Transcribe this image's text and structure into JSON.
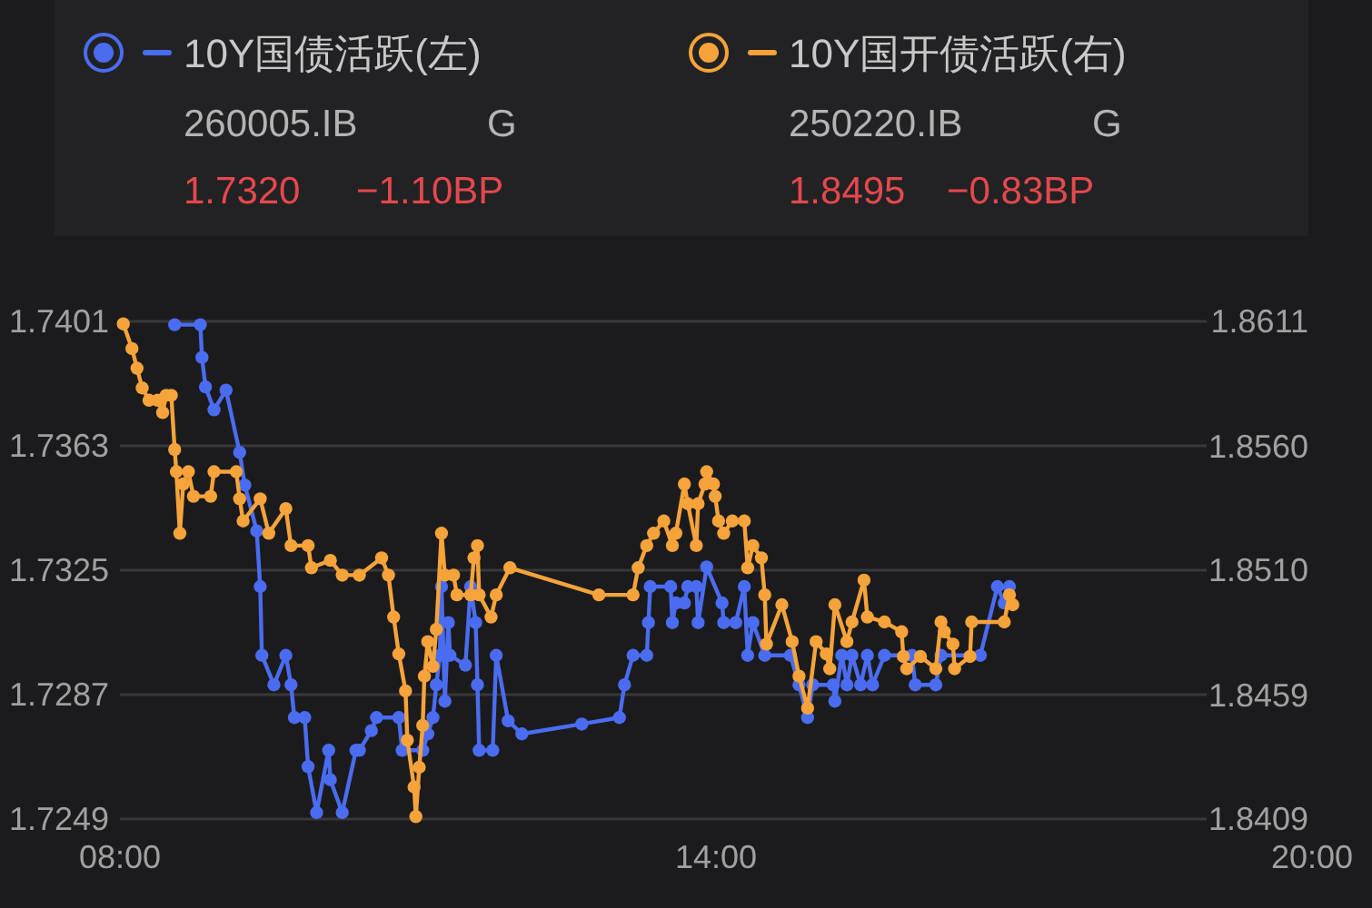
{
  "chart_data": {
    "type": "line",
    "marker": "circle",
    "grid": "y",
    "legend": "top",
    "annotations": [
      "260005.IB",
      "G",
      "1.7320",
      "−1.10BP",
      "250220.IB",
      "G",
      "1.8495",
      "−0.83BP"
    ],
    "xlim": [
      8,
      20
    ],
    "xticks": [
      {
        "value": 8,
        "label": "08:00"
      },
      {
        "value": 14,
        "label": "14:00"
      },
      {
        "value": 20,
        "label": "20:00"
      }
    ],
    "ylim": [
      1.7249,
      1.7401
    ],
    "yticks": [
      1.7249,
      1.7287,
      1.7325,
      1.7363,
      1.7401
    ],
    "y2lim": [
      1.8409,
      1.8611
    ],
    "y2ticks": [
      1.8409,
      1.8459,
      {
        "value": 1.851,
        "label": "1.8510"
      },
      {
        "value": 1.856,
        "label": "1.8560"
      },
      1.8611
    ],
    "series": [
      {
        "name": "10Y国债活跃(左)",
        "color": "#4a6cf0",
        "x": [
          8.551,
          8.809,
          8.826,
          8.861,
          8.947,
          9.068,
          9.205,
          9.257,
          9.377,
          9.412,
          9.429,
          9.55,
          9.67,
          9.722,
          9.756,
          9.86,
          9.894,
          9.98,
          10.101,
          10.118,
          10.238,
          10.376,
          10.41,
          10.531,
          10.583,
          10.807,
          10.841,
          11.048,
          11.099,
          11.151,
          11.185,
          11.22,
          11.237,
          11.271,
          11.306,
          11.323,
          11.478,
          11.53,
          11.581,
          11.599,
          11.616,
          11.753,
          11.788,
          11.908,
          12.046,
          12.649,
          13.028,
          13.079,
          13.165,
          13.303,
          13.32,
          13.338,
          13.544,
          13.561,
          13.596,
          13.682,
          13.716,
          13.802,
          13.82,
          13.906,
          14.061,
          14.078,
          14.199,
          14.285,
          14.319,
          14.371,
          14.491,
          14.749,
          14.836,
          14.922,
          14.973,
          15.18,
          15.197,
          15.266,
          15.318,
          15.369,
          15.456,
          15.524,
          15.576,
          15.696,
          15.972,
          16.006,
          16.213,
          16.265,
          16.661,
          16.833,
          16.902,
          16.954
        ],
        "values": [
          1.74,
          1.74,
          1.739,
          1.7381,
          1.7374,
          1.738,
          1.7361,
          1.7351,
          1.7337,
          1.732,
          1.7299,
          1.729,
          1.7299,
          1.729,
          1.728,
          1.728,
          1.7265,
          1.7251,
          1.727,
          1.7261,
          1.7251,
          1.727,
          1.727,
          1.7276,
          1.728,
          1.728,
          1.727,
          1.727,
          1.7275,
          1.728,
          1.729,
          1.7299,
          1.732,
          1.7285,
          1.7309,
          1.7299,
          1.7296,
          1.732,
          1.7309,
          1.729,
          1.727,
          1.727,
          1.7299,
          1.7279,
          1.7275,
          1.7278,
          1.728,
          1.729,
          1.7299,
          1.7299,
          1.7309,
          1.732,
          1.732,
          1.7309,
          1.7315,
          1.7315,
          1.732,
          1.732,
          1.7309,
          1.7326,
          1.7315,
          1.7309,
          1.7309,
          1.732,
          1.7299,
          1.7309,
          1.7299,
          1.7299,
          1.729,
          1.728,
          1.729,
          1.729,
          1.7285,
          1.7299,
          1.729,
          1.7299,
          1.729,
          1.7299,
          1.729,
          1.7299,
          1.7299,
          1.729,
          1.729,
          1.7299,
          1.7299,
          1.732,
          1.7315,
          1.732
        ]
      },
      {
        "name": "10Y国开债活跃(右)",
        "color": "#f5a33a",
        "axis": "y2",
        "x": [
          8.034,
          8.121,
          8.172,
          8.224,
          8.293,
          8.379,
          8.43,
          8.465,
          8.517,
          8.551,
          8.568,
          8.603,
          8.637,
          8.689,
          8.74,
          8.913,
          8.947,
          9.171,
          9.205,
          9.24,
          9.412,
          9.498,
          9.67,
          9.722,
          9.894,
          9.928,
          10.118,
          10.238,
          10.41,
          10.634,
          10.703,
          10.755,
          10.807,
          10.875,
          10.893,
          10.961,
          10.979,
          11.013,
          11.048,
          11.065,
          11.099,
          11.151,
          11.185,
          11.237,
          11.271,
          11.358,
          11.392,
          11.53,
          11.564,
          11.599,
          11.616,
          11.736,
          11.788,
          11.926,
          12.821,
          13.165,
          13.217,
          13.303,
          13.372,
          13.475,
          13.561,
          13.596,
          13.682,
          13.716,
          13.802,
          13.82,
          13.889,
          13.906,
          13.975,
          13.992,
          14.026,
          14.078,
          14.164,
          14.285,
          14.319,
          14.371,
          14.457,
          14.491,
          14.508,
          14.663,
          14.767,
          14.836,
          14.922,
          15.008,
          15.111,
          15.145,
          15.197,
          15.318,
          15.369,
          15.49,
          15.524,
          15.696,
          15.869,
          15.886,
          15.92,
          16.058,
          16.213,
          16.265,
          16.299,
          16.385,
          16.402,
          16.557,
          16.574,
          16.902,
          16.954,
          16.988
        ],
        "values": [
          1.861,
          1.86,
          1.8592,
          1.8584,
          1.8579,
          1.8579,
          1.8574,
          1.8581,
          1.8581,
          1.8559,
          1.855,
          1.8525,
          1.8545,
          1.855,
          1.854,
          1.854,
          1.855,
          1.855,
          1.8539,
          1.853,
          1.8539,
          1.8525,
          1.8535,
          1.852,
          1.852,
          1.8511,
          1.8514,
          1.8508,
          1.8508,
          1.8515,
          1.8508,
          1.8491,
          1.8476,
          1.8461,
          1.8441,
          1.8422,
          1.841,
          1.843,
          1.8447,
          1.8467,
          1.8481,
          1.8471,
          1.8486,
          1.8525,
          1.8508,
          1.8508,
          1.85,
          1.85,
          1.8515,
          1.852,
          1.85,
          1.8491,
          1.85,
          1.8511,
          1.85,
          1.85,
          1.8511,
          1.852,
          1.8525,
          1.853,
          1.852,
          1.8525,
          1.8545,
          1.8537,
          1.852,
          1.8537,
          1.8545,
          1.855,
          1.8545,
          1.854,
          1.853,
          1.8525,
          1.853,
          1.853,
          1.8511,
          1.852,
          1.8515,
          1.85,
          1.848,
          1.8496,
          1.8481,
          1.8467,
          1.8454,
          1.8481,
          1.8476,
          1.847,
          1.8496,
          1.8481,
          1.8489,
          1.8506,
          1.8491,
          1.8489,
          1.8485,
          1.8475,
          1.847,
          1.8475,
          1.847,
          1.8489,
          1.8485,
          1.848,
          1.847,
          1.8475,
          1.8489,
          1.8489,
          1.85,
          1.8496
        ]
      }
    ]
  }
}
